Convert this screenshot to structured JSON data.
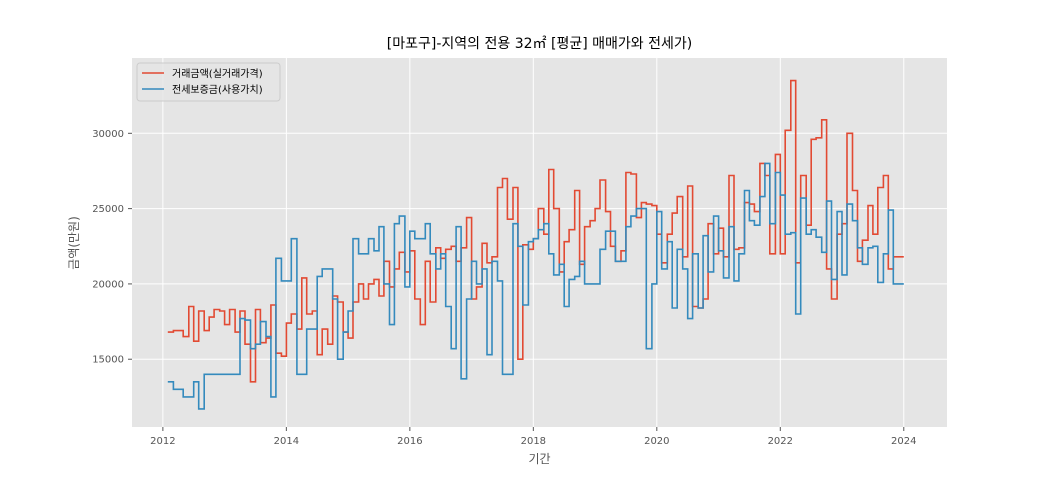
{
  "chart_data": {
    "type": "line",
    "step": "post",
    "title": "[마포구]-지역의 전용 32㎡ [평균] 매매가와 전세가)",
    "xlabel": "기간",
    "ylabel": "금액(만원)",
    "xlim": [
      2011.5,
      2024.7
    ],
    "ylim": [
      10500,
      35000
    ],
    "xticks": [
      2012,
      2014,
      2016,
      2018,
      2020,
      2022,
      2024
    ],
    "yticks": [
      15000,
      20000,
      25000,
      30000
    ],
    "grid": true,
    "legend_position": "upper-left",
    "series": [
      {
        "name": "거래금액(실거래가격)",
        "color": "#E24A33",
        "points": [
          [
            2012.08,
            16800
          ],
          [
            2012.17,
            16900
          ],
          [
            2012.33,
            16500
          ],
          [
            2012.42,
            18500
          ],
          [
            2012.5,
            16200
          ],
          [
            2012.58,
            18200
          ],
          [
            2012.67,
            16900
          ],
          [
            2012.75,
            17800
          ],
          [
            2012.83,
            18300
          ],
          [
            2012.92,
            18200
          ],
          [
            2013.0,
            17300
          ],
          [
            2013.08,
            18300
          ],
          [
            2013.17,
            16800
          ],
          [
            2013.25,
            18200
          ],
          [
            2013.33,
            16000
          ],
          [
            2013.42,
            13500
          ],
          [
            2013.5,
            18300
          ],
          [
            2013.58,
            16100
          ],
          [
            2013.67,
            16400
          ],
          [
            2013.75,
            18600
          ],
          [
            2013.83,
            15400
          ],
          [
            2013.92,
            15200
          ],
          [
            2014.0,
            17400
          ],
          [
            2014.08,
            18000
          ],
          [
            2014.17,
            17000
          ],
          [
            2014.25,
            20400
          ],
          [
            2014.33,
            18000
          ],
          [
            2014.42,
            18200
          ],
          [
            2014.5,
            15300
          ],
          [
            2014.58,
            17000
          ],
          [
            2014.67,
            16000
          ],
          [
            2014.75,
            19200
          ],
          [
            2014.83,
            18800
          ],
          [
            2014.92,
            16800
          ],
          [
            2015.0,
            16400
          ],
          [
            2015.08,
            18800
          ],
          [
            2015.17,
            20000
          ],
          [
            2015.25,
            19000
          ],
          [
            2015.33,
            20000
          ],
          [
            2015.42,
            20300
          ],
          [
            2015.5,
            19200
          ],
          [
            2015.58,
            21500
          ],
          [
            2015.67,
            19800
          ],
          [
            2015.75,
            21000
          ],
          [
            2015.83,
            22100
          ],
          [
            2015.92,
            20800
          ],
          [
            2016.0,
            22200
          ],
          [
            2016.08,
            19000
          ],
          [
            2016.17,
            17300
          ],
          [
            2016.25,
            21500
          ],
          [
            2016.33,
            18800
          ],
          [
            2016.42,
            22400
          ],
          [
            2016.5,
            21700
          ],
          [
            2016.58,
            22300
          ],
          [
            2016.67,
            22500
          ],
          [
            2016.75,
            21500
          ],
          [
            2016.83,
            22400
          ],
          [
            2016.92,
            24400
          ],
          [
            2017.0,
            19000
          ],
          [
            2017.08,
            19800
          ],
          [
            2017.17,
            22700
          ],
          [
            2017.25,
            21400
          ],
          [
            2017.33,
            21800
          ],
          [
            2017.42,
            26400
          ],
          [
            2017.5,
            27000
          ],
          [
            2017.58,
            24300
          ],
          [
            2017.67,
            26400
          ],
          [
            2017.75,
            15000
          ],
          [
            2017.83,
            22600
          ],
          [
            2017.92,
            22300
          ],
          [
            2018.0,
            23000
          ],
          [
            2018.08,
            25000
          ],
          [
            2018.17,
            23300
          ],
          [
            2018.25,
            27600
          ],
          [
            2018.33,
            25000
          ],
          [
            2018.42,
            20800
          ],
          [
            2018.5,
            22800
          ],
          [
            2018.58,
            23600
          ],
          [
            2018.67,
            26200
          ],
          [
            2018.75,
            21300
          ],
          [
            2018.83,
            23800
          ],
          [
            2018.92,
            24200
          ],
          [
            2019.0,
            25000
          ],
          [
            2019.08,
            26900
          ],
          [
            2019.17,
            24800
          ],
          [
            2019.25,
            22500
          ],
          [
            2019.33,
            21500
          ],
          [
            2019.42,
            22200
          ],
          [
            2019.5,
            27400
          ],
          [
            2019.58,
            27300
          ],
          [
            2019.67,
            24400
          ],
          [
            2019.75,
            25400
          ],
          [
            2019.83,
            25300
          ],
          [
            2019.92,
            25200
          ],
          [
            2020.0,
            23300
          ],
          [
            2020.08,
            21400
          ],
          [
            2020.17,
            23300
          ],
          [
            2020.25,
            24700
          ],
          [
            2020.33,
            25800
          ],
          [
            2020.42,
            21800
          ],
          [
            2020.5,
            26500
          ],
          [
            2020.58,
            18500
          ],
          [
            2020.67,
            18400
          ],
          [
            2020.75,
            19000
          ],
          [
            2020.83,
            24000
          ],
          [
            2020.92,
            22000
          ],
          [
            2021.0,
            23700
          ],
          [
            2021.08,
            21800
          ],
          [
            2021.17,
            27200
          ],
          [
            2021.25,
            22300
          ],
          [
            2021.33,
            22400
          ],
          [
            2021.42,
            25400
          ],
          [
            2021.5,
            25300
          ],
          [
            2021.58,
            24800
          ],
          [
            2021.67,
            28000
          ],
          [
            2021.75,
            27200
          ],
          [
            2021.83,
            22000
          ],
          [
            2021.92,
            28600
          ],
          [
            2022.0,
            22000
          ],
          [
            2022.08,
            30200
          ],
          [
            2022.17,
            33500
          ],
          [
            2022.25,
            21400
          ],
          [
            2022.33,
            27200
          ],
          [
            2022.42,
            23900
          ],
          [
            2022.5,
            29600
          ],
          [
            2022.58,
            29700
          ],
          [
            2022.67,
            30900
          ],
          [
            2022.75,
            21000
          ],
          [
            2022.83,
            19000
          ],
          [
            2022.92,
            23300
          ],
          [
            2023.0,
            24000
          ],
          [
            2023.08,
            30000
          ],
          [
            2023.17,
            26200
          ],
          [
            2023.25,
            21500
          ],
          [
            2023.33,
            22900
          ],
          [
            2023.42,
            25200
          ],
          [
            2023.5,
            23300
          ],
          [
            2023.58,
            26400
          ],
          [
            2023.67,
            27200
          ],
          [
            2023.75,
            21000
          ],
          [
            2023.83,
            21800
          ],
          [
            2023.92,
            21800
          ]
        ]
      },
      {
        "name": "전세보증금(사용가치)",
        "color": "#348ABD",
        "points": [
          [
            2012.08,
            13500
          ],
          [
            2012.17,
            13000
          ],
          [
            2012.33,
            12500
          ],
          [
            2012.5,
            13500
          ],
          [
            2012.58,
            11700
          ],
          [
            2012.67,
            14000
          ],
          [
            2013.0,
            14000
          ],
          [
            2013.25,
            17700
          ],
          [
            2013.33,
            17600
          ],
          [
            2013.42,
            15700
          ],
          [
            2013.5,
            16000
          ],
          [
            2013.58,
            17500
          ],
          [
            2013.67,
            16500
          ],
          [
            2013.75,
            12500
          ],
          [
            2013.83,
            21700
          ],
          [
            2013.92,
            20200
          ],
          [
            2014.08,
            23000
          ],
          [
            2014.17,
            14000
          ],
          [
            2014.33,
            17000
          ],
          [
            2014.5,
            20500
          ],
          [
            2014.58,
            21000
          ],
          [
            2014.75,
            19000
          ],
          [
            2014.83,
            15000
          ],
          [
            2014.92,
            16800
          ],
          [
            2015.0,
            18200
          ],
          [
            2015.08,
            23000
          ],
          [
            2015.17,
            22000
          ],
          [
            2015.33,
            23000
          ],
          [
            2015.42,
            22200
          ],
          [
            2015.5,
            23800
          ],
          [
            2015.58,
            20000
          ],
          [
            2015.67,
            17300
          ],
          [
            2015.75,
            24000
          ],
          [
            2015.83,
            24500
          ],
          [
            2015.92,
            19800
          ],
          [
            2016.0,
            23500
          ],
          [
            2016.08,
            23000
          ],
          [
            2016.25,
            24000
          ],
          [
            2016.33,
            22000
          ],
          [
            2016.42,
            21000
          ],
          [
            2016.5,
            22000
          ],
          [
            2016.58,
            18500
          ],
          [
            2016.67,
            15700
          ],
          [
            2016.75,
            23800
          ],
          [
            2016.83,
            13700
          ],
          [
            2016.92,
            19000
          ],
          [
            2017.0,
            21500
          ],
          [
            2017.08,
            20000
          ],
          [
            2017.17,
            21000
          ],
          [
            2017.25,
            15300
          ],
          [
            2017.33,
            21500
          ],
          [
            2017.42,
            20200
          ],
          [
            2017.5,
            14000
          ],
          [
            2017.67,
            24000
          ],
          [
            2017.75,
            22500
          ],
          [
            2017.83,
            18600
          ],
          [
            2017.92,
            22800
          ],
          [
            2018.0,
            23000
          ],
          [
            2018.08,
            23600
          ],
          [
            2018.17,
            24000
          ],
          [
            2018.25,
            22000
          ],
          [
            2018.33,
            20600
          ],
          [
            2018.42,
            21300
          ],
          [
            2018.5,
            18500
          ],
          [
            2018.58,
            20300
          ],
          [
            2018.67,
            20500
          ],
          [
            2018.75,
            21500
          ],
          [
            2018.83,
            20000
          ],
          [
            2019.08,
            22300
          ],
          [
            2019.17,
            23500
          ],
          [
            2019.33,
            21500
          ],
          [
            2019.5,
            23800
          ],
          [
            2019.58,
            24500
          ],
          [
            2019.67,
            25000
          ],
          [
            2019.83,
            15700
          ],
          [
            2019.92,
            20000
          ],
          [
            2020.0,
            24800
          ],
          [
            2020.08,
            21000
          ],
          [
            2020.17,
            22800
          ],
          [
            2020.25,
            18400
          ],
          [
            2020.33,
            22300
          ],
          [
            2020.42,
            21000
          ],
          [
            2020.5,
            17700
          ],
          [
            2020.58,
            22000
          ],
          [
            2020.67,
            18400
          ],
          [
            2020.75,
            23200
          ],
          [
            2020.83,
            20800
          ],
          [
            2020.92,
            24500
          ],
          [
            2021.0,
            22200
          ],
          [
            2021.08,
            20400
          ],
          [
            2021.17,
            23800
          ],
          [
            2021.25,
            20200
          ],
          [
            2021.33,
            22000
          ],
          [
            2021.42,
            26200
          ],
          [
            2021.5,
            24200
          ],
          [
            2021.58,
            23900
          ],
          [
            2021.67,
            25800
          ],
          [
            2021.75,
            28000
          ],
          [
            2021.83,
            24000
          ],
          [
            2021.92,
            27400
          ],
          [
            2022.0,
            25900
          ],
          [
            2022.08,
            23300
          ],
          [
            2022.17,
            23400
          ],
          [
            2022.25,
            18000
          ],
          [
            2022.33,
            25700
          ],
          [
            2022.42,
            23300
          ],
          [
            2022.5,
            23600
          ],
          [
            2022.58,
            23100
          ],
          [
            2022.67,
            22100
          ],
          [
            2022.75,
            25500
          ],
          [
            2022.83,
            20300
          ],
          [
            2022.92,
            24800
          ],
          [
            2023.0,
            20600
          ],
          [
            2023.08,
            25300
          ],
          [
            2023.17,
            24200
          ],
          [
            2023.25,
            22400
          ],
          [
            2023.33,
            21300
          ],
          [
            2023.42,
            22400
          ],
          [
            2023.5,
            22500
          ],
          [
            2023.58,
            20100
          ],
          [
            2023.67,
            22000
          ],
          [
            2023.75,
            24900
          ],
          [
            2023.83,
            20000
          ],
          [
            2023.92,
            20000
          ]
        ]
      }
    ]
  }
}
